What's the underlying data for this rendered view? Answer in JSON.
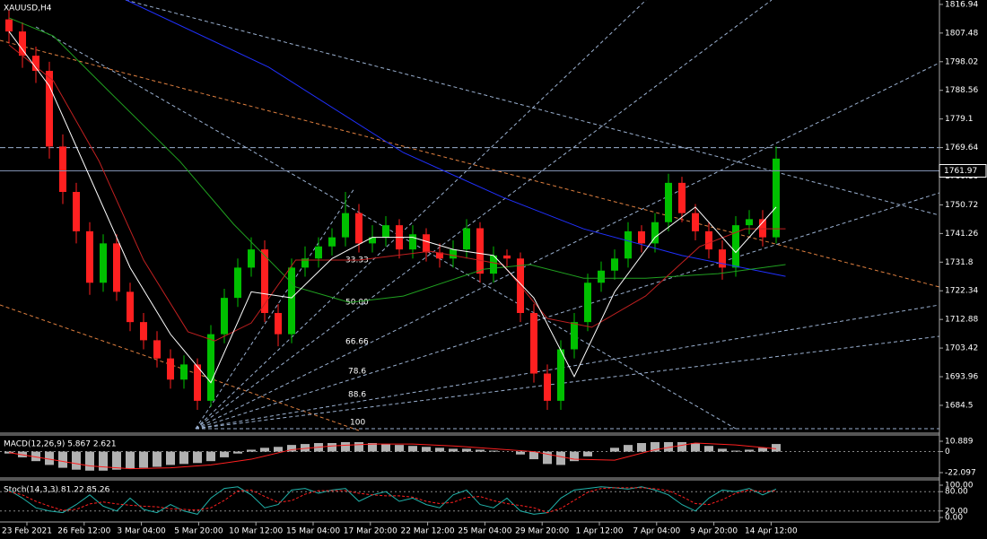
{
  "time_axis": [
    "23 Feb 2021",
    "26 Feb 12:00",
    "3 Mar 04:00",
    "5 Mar 20:00",
    "10 Mar 12:00",
    "15 Mar 04:00",
    "17 Mar 20:00",
    "22 Mar 12:00",
    "25 Mar 04:00",
    "29 Mar 20:00",
    "1 Apr 12:00",
    "7 Apr 04:00",
    "9 Apr 20:00",
    "14 Apr 12:00"
  ],
  "chart_data": [
    {
      "type": "candlestick",
      "title": "XAUUSD,H4",
      "up_color": "#00c000",
      "down_color": "#ff2020",
      "open": [
        1812,
        1808,
        1800,
        1795,
        1770,
        1755,
        1742,
        1725,
        1738,
        1722,
        1712,
        1706,
        1700,
        1693,
        1698,
        1686,
        1708,
        1720,
        1730,
        1736,
        1715,
        1708,
        1730,
        1733,
        1737,
        1740,
        1748,
        1738,
        1740,
        1744,
        1736,
        1741,
        1735,
        1733,
        1736,
        1743,
        1728,
        1734,
        1733,
        1715,
        1695,
        1686,
        1703,
        1712,
        1725,
        1729,
        1733,
        1742,
        1738,
        1745,
        1758,
        1748,
        1742,
        1736,
        1730,
        1744,
        1746,
        1740
      ],
      "high": [
        1815,
        1811,
        1803,
        1798,
        1774,
        1758,
        1745,
        1741,
        1741,
        1725,
        1715,
        1709,
        1703,
        1701,
        1700,
        1711,
        1723,
        1733,
        1740,
        1739,
        1718,
        1733,
        1737,
        1740,
        1743,
        1755,
        1751,
        1744,
        1747,
        1746,
        1744,
        1743,
        1738,
        1739,
        1746,
        1745,
        1737,
        1736,
        1735,
        1718,
        1698,
        1706,
        1715,
        1728,
        1732,
        1736,
        1745,
        1744,
        1748,
        1761,
        1760,
        1751,
        1745,
        1739,
        1747,
        1749,
        1749,
        1770
      ],
      "low": [
        1804,
        1796,
        1791,
        1766,
        1751,
        1738,
        1721,
        1722,
        1719,
        1709,
        1703,
        1697,
        1690,
        1690,
        1683,
        1684,
        1705,
        1717,
        1727,
        1712,
        1704,
        1705,
        1727,
        1730,
        1734,
        1737,
        1735,
        1735,
        1737,
        1733,
        1733,
        1732,
        1730,
        1730,
        1733,
        1725,
        1725,
        1730,
        1712,
        1692,
        1683,
        1683,
        1700,
        1709,
        1722,
        1726,
        1730,
        1735,
        1735,
        1742,
        1745,
        1739,
        1733,
        1726,
        1727,
        1741,
        1737,
        1738
      ],
      "close": [
        1808,
        1800,
        1795,
        1770,
        1755,
        1742,
        1725,
        1738,
        1722,
        1712,
        1706,
        1700,
        1693,
        1698,
        1686,
        1708,
        1720,
        1730,
        1736,
        1715,
        1708,
        1730,
        1733,
        1737,
        1740,
        1748,
        1738,
        1740,
        1744,
        1736,
        1741,
        1735,
        1733,
        1736,
        1743,
        1728,
        1734,
        1733,
        1715,
        1695,
        1686,
        1703,
        1712,
        1725,
        1729,
        1733,
        1742,
        1738,
        1745,
        1758,
        1748,
        1742,
        1736,
        1730,
        1744,
        1746,
        1740,
        1766
      ],
      "series": [
        {
          "color": "#2030ff",
          "x": [
            8.7,
            19.3,
            29.3,
            36.7,
            42.7,
            50,
            57.7
          ],
          "values": [
            1818.4,
            1796.2,
            1768,
            1753.2,
            1742.8,
            1734,
            1727.1
          ]
        },
        {
          "color": "#20a020",
          "x": [
            0,
            3.3,
            7.3,
            12.7,
            16.7,
            21.3,
            25.3,
            29.3,
            35.3,
            38.7,
            42.7,
            47.3,
            52.7,
            57.7
          ],
          "values": [
            1812.5,
            1806.5,
            1788.8,
            1765.1,
            1744.3,
            1723.6,
            1718.5,
            1720.6,
            1729.5,
            1731,
            1726.5,
            1726.5,
            1728,
            1731
          ]
        },
        {
          "color": "#c02020",
          "x": [
            0,
            3.3,
            6.7,
            10,
            13.3,
            15.3,
            18,
            21.3,
            26,
            31.3,
            36.7,
            40,
            43.3,
            47.3,
            51.3,
            54.7,
            57.7
          ],
          "values": [
            1803.6,
            1791.7,
            1765.1,
            1732.5,
            1708.8,
            1705.8,
            1711.7,
            1732.5,
            1732.5,
            1735.4,
            1731,
            1713.2,
            1710.3,
            1720.6,
            1736.9,
            1742.8,
            1742.8
          ]
        },
        {
          "color": "#ffffff",
          "x": [
            0,
            3,
            6,
            9,
            12,
            15,
            18,
            21,
            24,
            27,
            30,
            33,
            36,
            39,
            42,
            45,
            48,
            51,
            54,
            57
          ],
          "values": [
            1808,
            1790,
            1760,
            1730,
            1708,
            1692,
            1722,
            1720,
            1733,
            1740,
            1740,
            1736,
            1734,
            1720,
            1694,
            1722,
            1740,
            1750,
            1735,
            1750
          ]
        }
      ],
      "ylim": [
        1675.6,
        1818.4
      ],
      "yticks": [
        1816.94,
        1807.48,
        1798.02,
        1788.56,
        1779.1,
        1769.64,
        1760.16,
        1750.72,
        1741.26,
        1731.8,
        1722.34,
        1712.88,
        1703.42,
        1693.96,
        1684.5
      ],
      "hlines": [
        1769.64
      ],
      "current_price": 1761.97,
      "fib_labels": [
        "33.33",
        "50.00",
        "66.66",
        "78.6",
        "88.6",
        "100"
      ]
    },
    {
      "type": "bar",
      "title": "MACD(12,26,9) 5.867 2.621",
      "color": "#d0d0d0",
      "values": [
        -2,
        -6,
        -10,
        -14,
        -17,
        -19,
        -20,
        -20,
        -19,
        -18,
        -17,
        -16,
        -14,
        -13,
        -12,
        -10,
        -6,
        -2,
        2,
        4,
        5,
        7,
        8,
        9,
        9,
        10,
        10,
        9,
        8,
        7,
        6,
        5,
        4,
        3,
        3,
        2,
        1,
        0,
        -3,
        -8,
        -13,
        -14,
        -10,
        -5,
        0,
        4,
        7,
        9,
        10,
        10,
        10,
        9,
        6,
        3,
        1,
        2,
        4,
        8
      ],
      "series": [
        {
          "color": "#ff2020",
          "x": [
            0,
            3,
            6,
            9,
            12,
            15,
            18,
            21,
            24,
            27,
            30,
            33,
            36,
            39,
            42,
            45,
            48,
            51,
            54,
            57
          ],
          "values": [
            -1,
            -8,
            -15,
            -18,
            -17,
            -14,
            -8,
            2,
            6,
            8,
            8,
            6,
            3,
            0,
            -8,
            -9,
            2,
            9,
            7,
            3
          ]
        }
      ],
      "ylim": [
        -26.8,
        16.55
      ],
      "yticks": [
        10.889,
        0,
        -22.097
      ],
      "levels": [
        0
      ]
    },
    {
      "type": "line",
      "title": "Stoch(14,3,3) 81.22 85.26",
      "series": [
        {
          "color": "#20b2aa",
          "values": [
            85,
            60,
            30,
            20,
            15,
            40,
            70,
            35,
            20,
            60,
            25,
            15,
            40,
            20,
            10,
            60,
            90,
            95,
            70,
            30,
            40,
            85,
            90,
            75,
            85,
            90,
            50,
            70,
            80,
            50,
            60,
            40,
            30,
            70,
            85,
            40,
            30,
            60,
            20,
            10,
            15,
            60,
            85,
            90,
            95,
            92,
            88,
            95,
            85,
            70,
            40,
            20,
            60,
            85,
            80,
            90,
            70,
            88
          ]
        },
        {
          "color": "#ff2020",
          "values": [
            80,
            70,
            50,
            35,
            22,
            25,
            42,
            48,
            42,
            38,
            35,
            33,
            27,
            25,
            23,
            30,
            53,
            82,
            85,
            65,
            47,
            52,
            72,
            83,
            83,
            83,
            75,
            70,
            67,
            67,
            63,
            50,
            43,
            47,
            62,
            65,
            52,
            43,
            37,
            30,
            15,
            28,
            53,
            78,
            90,
            92,
            92,
            92,
            89,
            83,
            65,
            43,
            40,
            55,
            75,
            85,
            80,
            83
          ]
        }
      ],
      "ylim": [
        -13.9,
        111.1
      ],
      "yticks": [
        {
          "value": 100,
          "label": "100.00"
        },
        {
          "value": 80,
          "label": "80.00"
        },
        {
          "value": 20,
          "label": "20.00"
        },
        {
          "value": 0,
          "label": "0.00"
        }
      ],
      "levels": [
        80,
        20
      ]
    }
  ]
}
